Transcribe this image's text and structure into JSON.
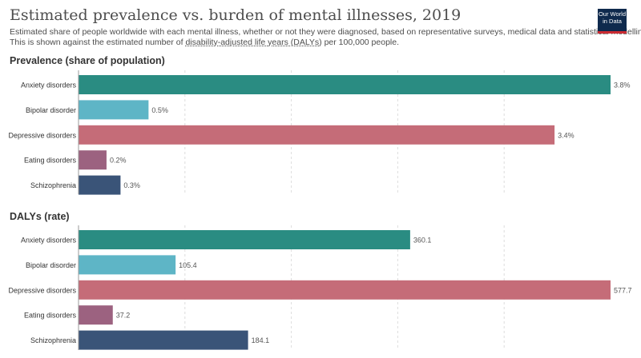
{
  "header": {
    "title": "Estimated prevalence vs. burden of mental illnesses, 2019",
    "subtitle_line1": "Estimated share of people worldwide with each mental illness, whether or not they were diagnosed, based on representative surveys, medical data and statistical modelling.",
    "subtitle_line2_pre": "This is shown against the estimated number of ",
    "subtitle_line2_link": "disability-adjusted life years (DALYs)",
    "subtitle_line2_post": " per 100,000 people.",
    "logo_line1": "Our World",
    "logo_line2": "in Data"
  },
  "colors": {
    "Anxiety disorders": "#2a8c82",
    "Bipolar disorder": "#5eb5c6",
    "Depressive disorders": "#c56c78",
    "Eating disorders": "#9c6280",
    "Schizophrenia": "#3a5478"
  },
  "chart_data": [
    {
      "type": "bar",
      "title": "Prevalence (share of population)",
      "categories": [
        "Anxiety disorders",
        "Bipolar disorder",
        "Depressive disorders",
        "Eating disorders",
        "Schizophrenia"
      ],
      "values": [
        3.8,
        0.5,
        3.4,
        0.2,
        0.3
      ],
      "value_labels": [
        "3.8%",
        "0.5%",
        "3.4%",
        "0.2%",
        "0.3%"
      ],
      "xlim": [
        0,
        3.8
      ],
      "grid": true
    },
    {
      "type": "bar",
      "title": "DALYs (rate)",
      "categories": [
        "Anxiety disorders",
        "Bipolar disorder",
        "Depressive disorders",
        "Eating disorders",
        "Schizophrenia"
      ],
      "values": [
        360.1,
        105.4,
        577.7,
        37.2,
        184.1
      ],
      "value_labels": [
        "360.1",
        "105.4",
        "577.7",
        "37.2",
        "184.1"
      ],
      "xlim": [
        0,
        577.7
      ],
      "grid": true
    }
  ]
}
